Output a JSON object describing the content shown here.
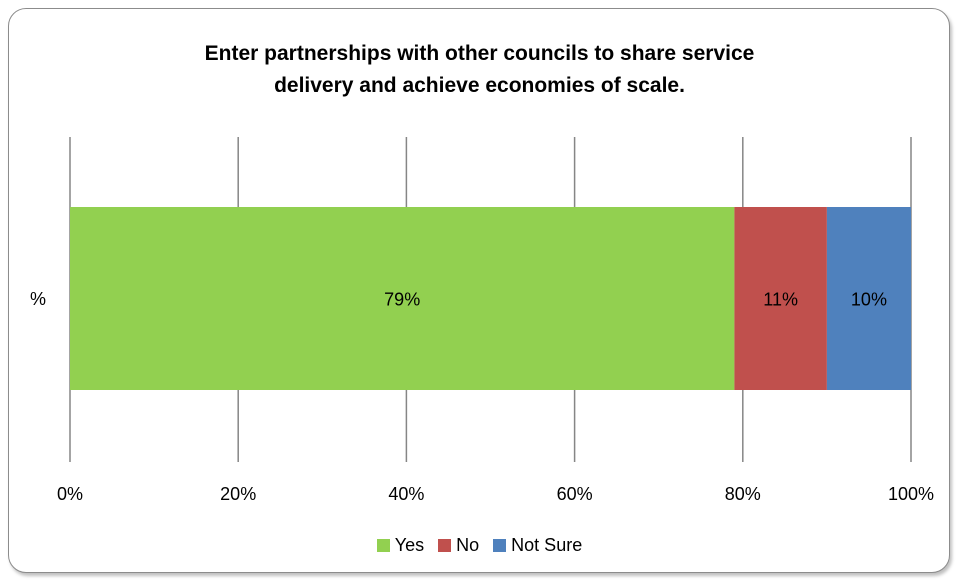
{
  "chart_data": {
    "type": "bar",
    "orientation": "horizontal",
    "stacked": true,
    "percent_stacked": true,
    "title_lines": [
      "Enter partnerships with other councils to share service",
      "delivery and achieve economies of scale."
    ],
    "categories": [
      "%"
    ],
    "series": [
      {
        "name": "Yes",
        "values": [
          79
        ],
        "label": "79%",
        "color": "#92D050"
      },
      {
        "name": "No",
        "values": [
          11
        ],
        "label": "11%",
        "color": "#C0504D"
      },
      {
        "name": "Not Sure",
        "values": [
          10
        ],
        "label": "10%",
        "color": "#4F81BD"
      }
    ],
    "xlim": [
      0,
      100
    ],
    "x_ticks": [
      "0%",
      "20%",
      "40%",
      "60%",
      "80%",
      "100%"
    ],
    "gridlines": "vertical",
    "gridline_color": "#868686",
    "legend_position": "bottom"
  }
}
